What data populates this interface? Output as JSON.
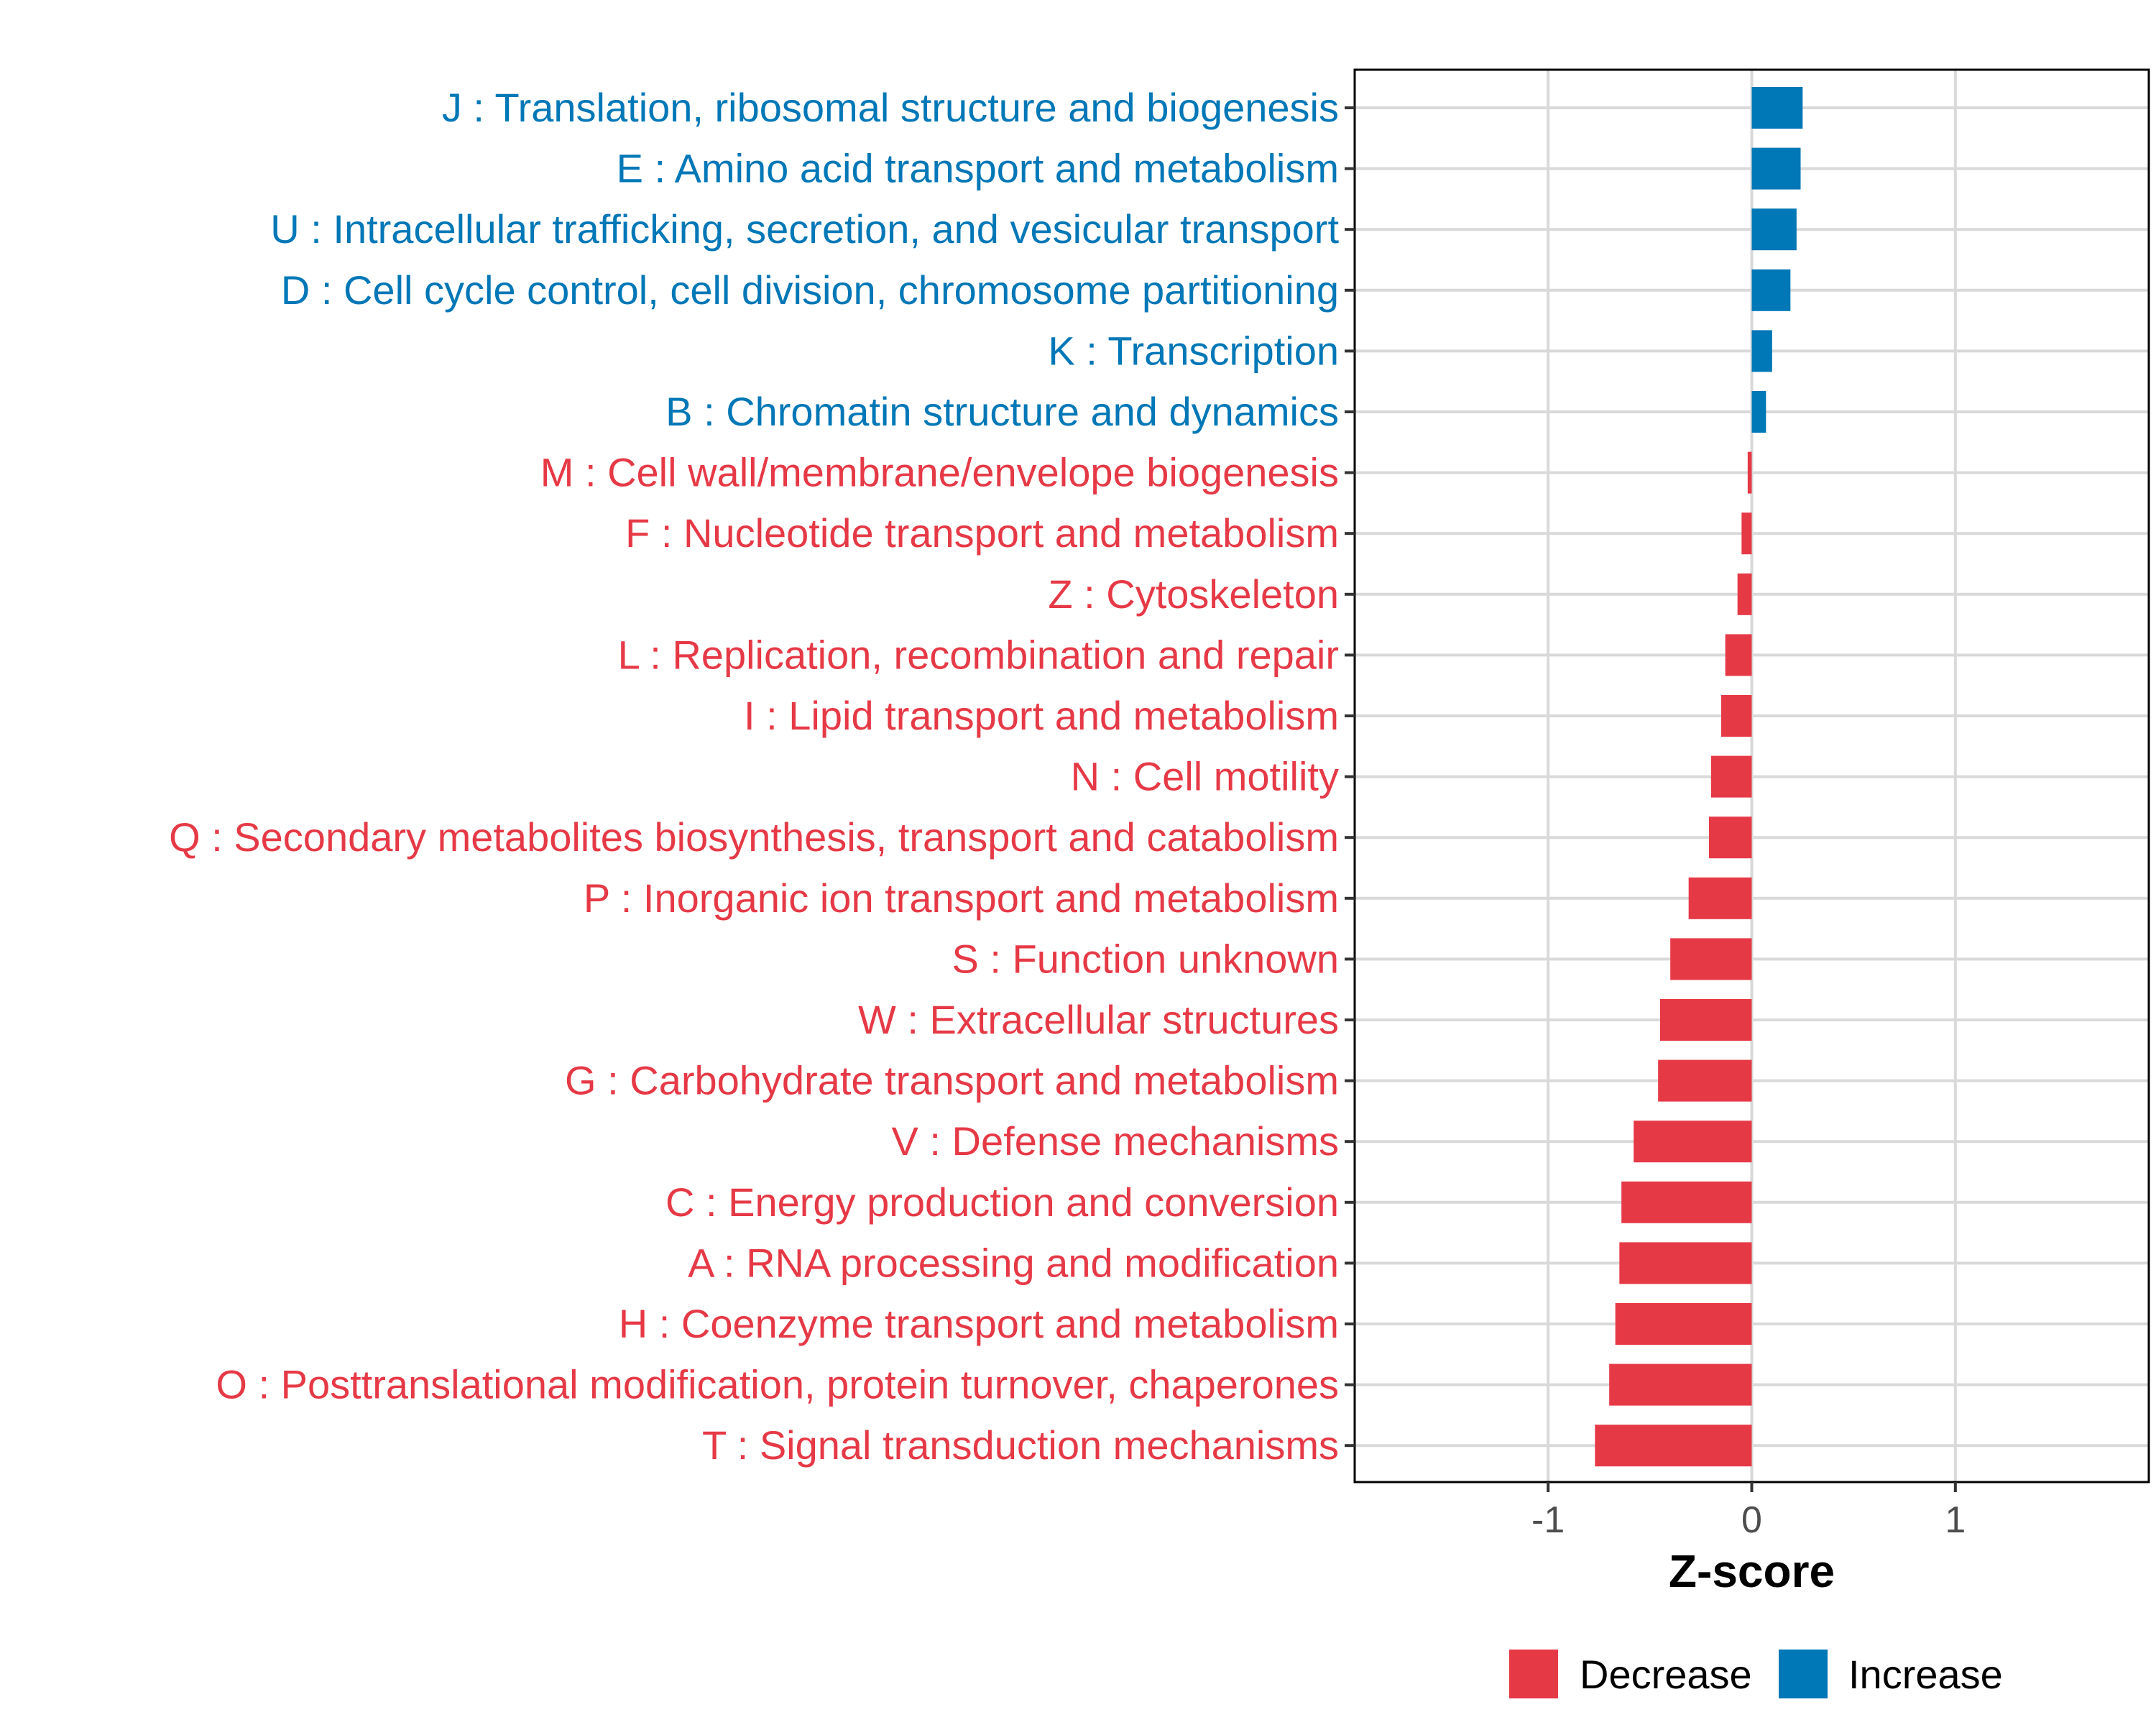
{
  "chart_data": {
    "type": "bar",
    "orientation": "horizontal",
    "xlabel": "Z-score",
    "ylabel": "",
    "xlim": [
      -1.95,
      1.95
    ],
    "xticks": [
      -1,
      0,
      1
    ],
    "xtick_labels": [
      "-1",
      "0",
      "1"
    ],
    "grid": true,
    "legend": {
      "position": "bottom",
      "entries": [
        {
          "label": "Decrease",
          "color": "#e63946"
        },
        {
          "label": "Increase",
          "color": "#0077b6"
        }
      ]
    },
    "colors": {
      "Increase": "#0077b6",
      "Decrease": "#e63946"
    },
    "categories": [
      "J : Translation, ribosomal structure and biogenesis",
      "E : Amino acid transport and metabolism",
      "U : Intracellular trafficking, secretion, and vesicular transport",
      "D : Cell cycle control, cell division, chromosome partitioning",
      "K : Transcription",
      "B : Chromatin structure and dynamics",
      "M : Cell wall/membrane/envelope biogenesis",
      "F : Nucleotide transport and metabolism",
      "Z : Cytoskeleton",
      "L : Replication, recombination and repair",
      "I : Lipid transport and metabolism",
      "N : Cell motility",
      "Q : Secondary metabolites biosynthesis, transport and catabolism",
      "P : Inorganic ion transport and metabolism",
      "S : Function unknown",
      "W : Extracellular structures",
      "G : Carbohydrate transport and metabolism",
      "V : Defense mechanisms",
      "C : Energy production and conversion",
      "A : RNA processing and modification",
      "H : Coenzyme transport and metabolism",
      "O : Posttranslational modification, protein turnover, chaperones",
      "T : Signal transduction mechanisms"
    ],
    "values": [
      0.25,
      0.24,
      0.22,
      0.19,
      0.1,
      0.07,
      -0.02,
      -0.05,
      -0.07,
      -0.13,
      -0.15,
      -0.2,
      -0.21,
      -0.31,
      -0.4,
      -0.45,
      -0.46,
      -0.58,
      -0.64,
      -0.65,
      -0.67,
      -0.7,
      -0.77
    ],
    "groups": [
      "Increase",
      "Increase",
      "Increase",
      "Increase",
      "Increase",
      "Increase",
      "Decrease",
      "Decrease",
      "Decrease",
      "Decrease",
      "Decrease",
      "Decrease",
      "Decrease",
      "Decrease",
      "Decrease",
      "Decrease",
      "Decrease",
      "Decrease",
      "Decrease",
      "Decrease",
      "Decrease",
      "Decrease",
      "Decrease"
    ]
  }
}
